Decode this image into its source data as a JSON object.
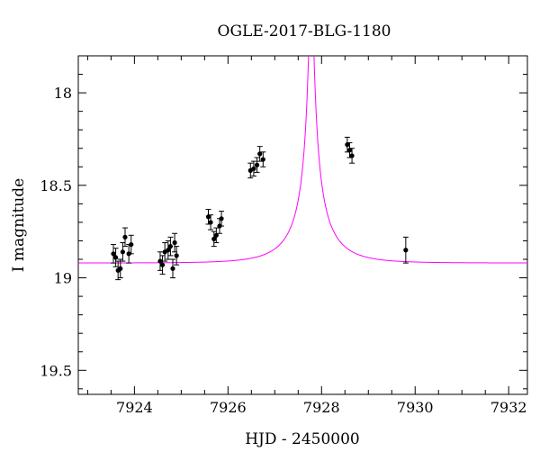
{
  "chart_data": {
    "type": "scatter",
    "title": "OGLE-2017-BLG-1180",
    "xlabel": "HJD - 2450000",
    "ylabel": "I magnitude",
    "xlim": [
      7922.8,
      7932.4
    ],
    "ylim": [
      19.63,
      17.8
    ],
    "y_inverted": true,
    "x_ticks": [
      7924,
      7926,
      7928,
      7930,
      7932
    ],
    "x_tick_labels": [
      "7924",
      "7926",
      "7928",
      "7930",
      "7932"
    ],
    "x_minor_step": 0.5,
    "y_ticks": [
      18,
      18.5,
      19,
      19.5
    ],
    "y_tick_labels": [
      "18",
      "18.5",
      "19",
      "19.5"
    ],
    "y_minor_step": 0.1,
    "grid": false,
    "model_color": "#ff00ff",
    "point_color": "#000000",
    "model": {
      "type": "paczynski",
      "t0": 7927.78,
      "tE": 0.9,
      "u0": 0.05,
      "baseline_mag": 18.92,
      "fs": 0.16
    },
    "points": [
      {
        "x": 7923.55,
        "y": 18.87,
        "err": 0.05
      },
      {
        "x": 7923.6,
        "y": 18.89,
        "err": 0.05
      },
      {
        "x": 7923.65,
        "y": 18.96,
        "err": 0.05
      },
      {
        "x": 7923.7,
        "y": 18.95,
        "err": 0.05
      },
      {
        "x": 7923.75,
        "y": 18.86,
        "err": 0.05
      },
      {
        "x": 7923.8,
        "y": 18.78,
        "err": 0.05
      },
      {
        "x": 7923.88,
        "y": 18.87,
        "err": 0.05
      },
      {
        "x": 7923.93,
        "y": 18.82,
        "err": 0.05
      },
      {
        "x": 7924.55,
        "y": 18.91,
        "err": 0.05
      },
      {
        "x": 7924.6,
        "y": 18.93,
        "err": 0.05
      },
      {
        "x": 7924.65,
        "y": 18.86,
        "err": 0.05
      },
      {
        "x": 7924.72,
        "y": 18.85,
        "err": 0.05
      },
      {
        "x": 7924.77,
        "y": 18.83,
        "err": 0.05
      },
      {
        "x": 7924.82,
        "y": 18.95,
        "err": 0.05
      },
      {
        "x": 7924.86,
        "y": 18.81,
        "err": 0.05
      },
      {
        "x": 7924.9,
        "y": 18.88,
        "err": 0.05
      },
      {
        "x": 7925.58,
        "y": 18.67,
        "err": 0.04
      },
      {
        "x": 7925.63,
        "y": 18.7,
        "err": 0.04
      },
      {
        "x": 7925.7,
        "y": 18.79,
        "err": 0.04
      },
      {
        "x": 7925.75,
        "y": 18.77,
        "err": 0.04
      },
      {
        "x": 7925.82,
        "y": 18.72,
        "err": 0.04
      },
      {
        "x": 7925.86,
        "y": 18.68,
        "err": 0.04
      },
      {
        "x": 7926.48,
        "y": 18.42,
        "err": 0.04
      },
      {
        "x": 7926.55,
        "y": 18.41,
        "err": 0.04
      },
      {
        "x": 7926.62,
        "y": 18.39,
        "err": 0.04
      },
      {
        "x": 7926.68,
        "y": 18.33,
        "err": 0.04
      },
      {
        "x": 7926.75,
        "y": 18.36,
        "err": 0.04
      },
      {
        "x": 7928.55,
        "y": 18.28,
        "err": 0.04
      },
      {
        "x": 7928.6,
        "y": 18.31,
        "err": 0.04
      },
      {
        "x": 7928.65,
        "y": 18.34,
        "err": 0.04
      },
      {
        "x": 7929.8,
        "y": 18.85,
        "err": 0.07
      }
    ]
  }
}
